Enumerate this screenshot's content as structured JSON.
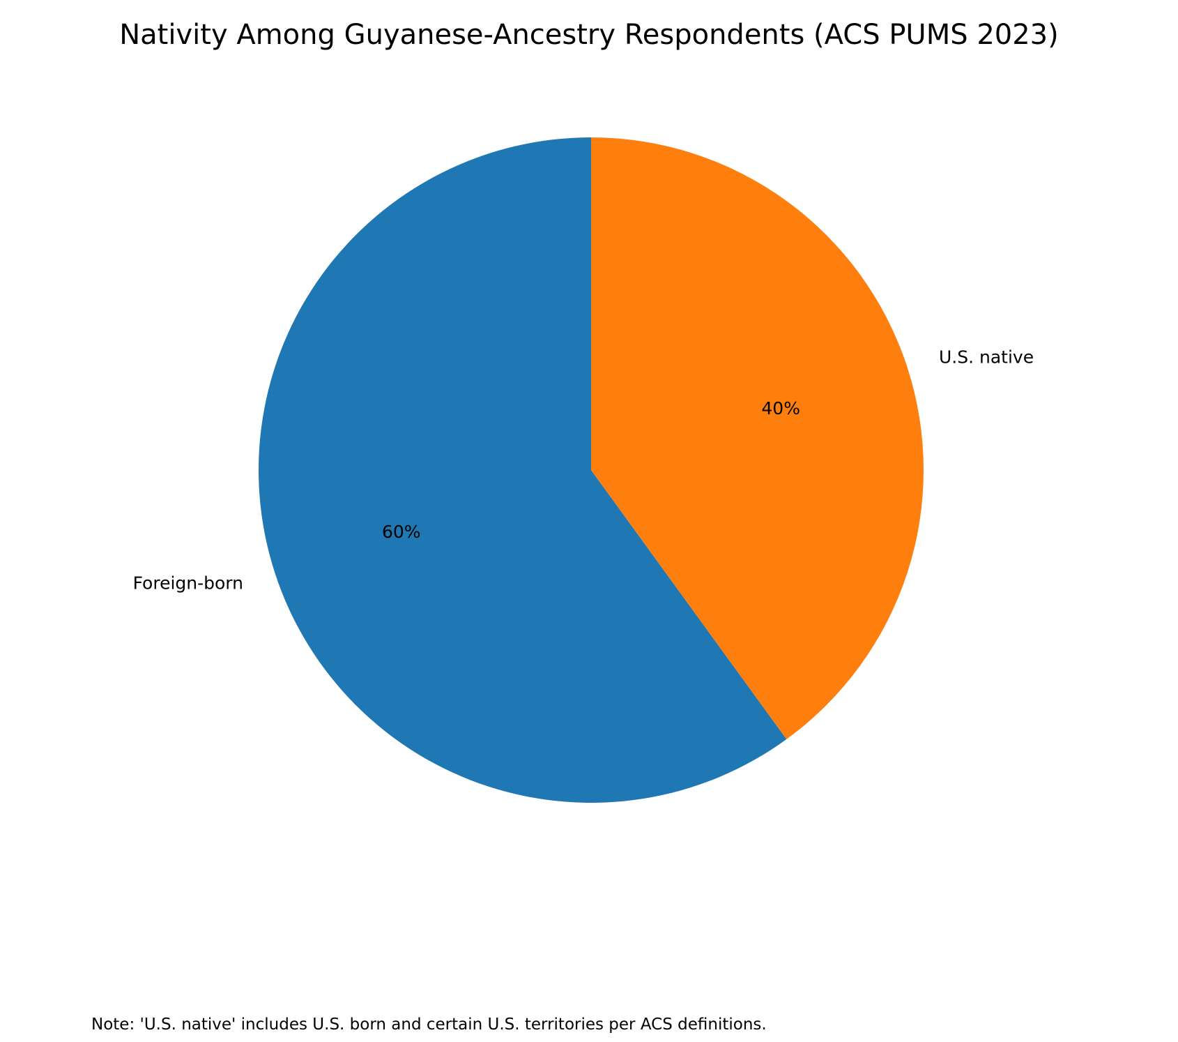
{
  "chart_data": {
    "type": "pie",
    "title": "Nativity Among Guyanese-Ancestry Respondents (ACS PUMS 2023)",
    "slices": [
      {
        "label": "Foreign-born",
        "value": 60,
        "pct_label": "60%",
        "color": "#1f77b4"
      },
      {
        "label": "U.S. native",
        "value": 40,
        "pct_label": "40%",
        "color": "#ff7f0e"
      }
    ],
    "start": "top",
    "direction": "counterclockwise",
    "legend": "none",
    "note": "Note: 'U.S. native' includes U.S. born and certain U.S. territories per ACS definitions."
  }
}
